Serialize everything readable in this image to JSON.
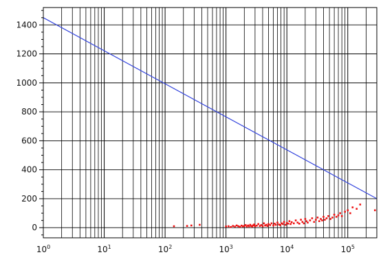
{
  "chart_data": {
    "type": "scatter",
    "title": "",
    "xlabel": "",
    "ylabel": "",
    "xscale": "log",
    "xlim": [
      1,
      300000
    ],
    "ylim": [
      -70,
      1520
    ],
    "grid": true,
    "x_tick_labels": [
      {
        "value": 1,
        "base": "10",
        "exp": "0"
      },
      {
        "value": 10,
        "base": "10",
        "exp": "1"
      },
      {
        "value": 100,
        "base": "10",
        "exp": "2"
      },
      {
        "value": 1000,
        "base": "10",
        "exp": "3"
      },
      {
        "value": 10000,
        "base": "10",
        "exp": "4"
      },
      {
        "value": 100000,
        "base": "10",
        "exp": "5"
      }
    ],
    "y_ticks": [
      0,
      200,
      400,
      600,
      800,
      1000,
      1200,
      1400
    ],
    "series": [
      {
        "type": "line",
        "color": "#3344dd",
        "x": [
          1,
          300000
        ],
        "y": [
          1450,
          200
        ]
      },
      {
        "type": "scatter",
        "color": "#ee1111",
        "x": [
          140,
          230,
          270,
          370,
          1000,
          1100,
          1200,
          1300,
          1400,
          1500,
          1600,
          1700,
          1800,
          1900,
          2000,
          2100,
          2200,
          2300,
          2400,
          2500,
          2600,
          2700,
          2800,
          2900,
          3000,
          3200,
          3400,
          3600,
          3800,
          4000,
          4200,
          4400,
          4600,
          4800,
          5000,
          5300,
          5600,
          6000,
          6300,
          6600,
          7000,
          7400,
          7800,
          8200,
          8600,
          9000,
          9500,
          10000,
          10500,
          11000,
          11500,
          12000,
          13000,
          14000,
          15000,
          16000,
          17000,
          18000,
          19000,
          20000,
          21000,
          22000,
          24000,
          26000,
          28000,
          30000,
          32000,
          34000,
          36000,
          38000,
          40000,
          42000,
          45000,
          48000,
          52000,
          56000,
          60000,
          65000,
          70000,
          75000,
          80000,
          90000,
          100000,
          110000,
          120000,
          140000,
          160000,
          280000
        ],
        "y": [
          10,
          12,
          15,
          20,
          8,
          10,
          5,
          12,
          8,
          15,
          10,
          6,
          14,
          9,
          12,
          18,
          8,
          15,
          10,
          20,
          12,
          8,
          16,
          22,
          10,
          14,
          25,
          12,
          18,
          10,
          30,
          15,
          20,
          12,
          25,
          18,
          30,
          15,
          28,
          20,
          35,
          22,
          18,
          30,
          25,
          40,
          20,
          32,
          28,
          45,
          25,
          38,
          30,
          50,
          35,
          28,
          55,
          40,
          30,
          60,
          45,
          35,
          50,
          65,
          40,
          55,
          70,
          45,
          60,
          50,
          75,
          55,
          65,
          80,
          60,
          70,
          90,
          75,
          85,
          100,
          80,
          110,
          120,
          100,
          140,
          130,
          160,
          120
        ]
      }
    ]
  }
}
